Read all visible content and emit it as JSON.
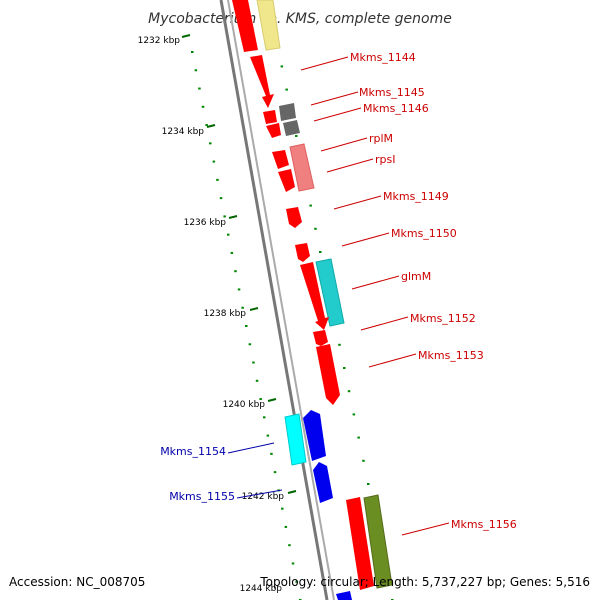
{
  "header": {
    "title": "Mycobacterium sp. KMS, complete genome"
  },
  "footer": {
    "accession": "Accession: NC_008705",
    "topology": "Topology: circular; Length: 5,737,227 bp; Genes: 5,516"
  },
  "scale": {
    "kbp_labels": [
      "1232 kbp",
      "1234 kbp",
      "1236 kbp",
      "1238 kbp",
      "1240 kbp",
      "1242 kbp",
      "1244 kbp"
    ]
  },
  "genes": [
    {
      "label": "Mkms_1144",
      "strand": "forward",
      "color": "#cc0000"
    },
    {
      "label": "Mkms_1145",
      "strand": "reverse",
      "color": "#cc0000"
    },
    {
      "label": "Mkms_1146",
      "strand": "reverse",
      "color": "#cc0000"
    },
    {
      "label": "rplM",
      "strand": "forward",
      "color": "#cc0000"
    },
    {
      "label": "rpsI",
      "strand": "forward",
      "color": "#cc0000"
    },
    {
      "label": "Mkms_1149",
      "strand": "forward",
      "color": "#cc0000"
    },
    {
      "label": "Mkms_1150",
      "strand": "forward",
      "color": "#cc0000"
    },
    {
      "label": "glmM",
      "strand": "forward",
      "color": "#cc0000"
    },
    {
      "label": "Mkms_1152",
      "strand": "forward",
      "color": "#cc0000"
    },
    {
      "label": "Mkms_1153",
      "strand": "forward",
      "color": "#cc0000"
    },
    {
      "label": "Mkms_1154",
      "strand": "reverse",
      "color": "#0000aa"
    },
    {
      "label": "Mkms_1155",
      "strand": "reverse",
      "color": "#0000aa"
    },
    {
      "label": "Mkms_1156",
      "strand": "forward",
      "color": "#cc0000"
    }
  ],
  "colors": {
    "gene_forward": "#ff0000",
    "gene_reverse": "#0000ee",
    "pseudo": "#777777",
    "rna": "#f08080",
    "cog_cyan": "#22cccc",
    "cog_aqua": "#00ffff",
    "cog_olive": "#6b8e23",
    "cog_yellow": "#f0e68c",
    "scale_ticks": "#006600",
    "backbone": "#888888"
  },
  "icons": {
    "gene": "gene-arrow-icon"
  }
}
